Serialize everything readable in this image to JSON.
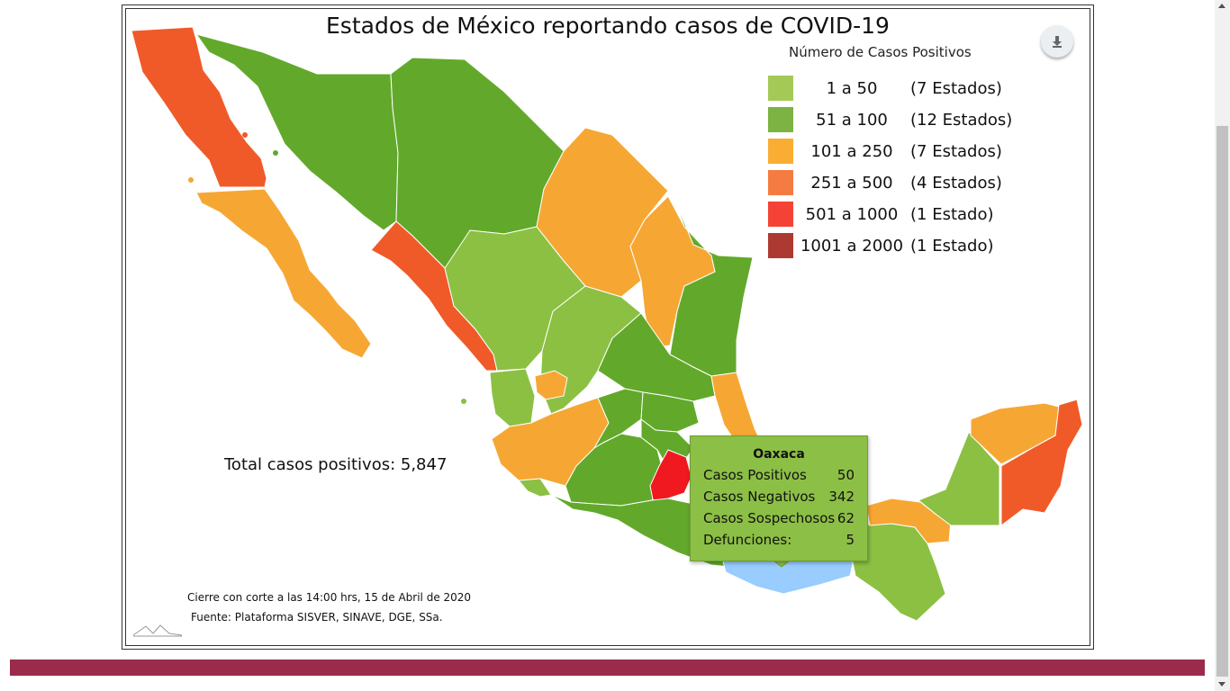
{
  "title": "Estados de México reportando casos de COVID-19",
  "legend": {
    "title": "Número de Casos Positivos",
    "items": [
      {
        "range": "1 a 50",
        "count": "(7 Estados)",
        "color": "#a5c957"
      },
      {
        "range": "51 a 100",
        "count": "(12 Estados)",
        "color": "#7cb342"
      },
      {
        "range": "101 a 250",
        "count": "(7 Estados)",
        "color": "#f9ae33"
      },
      {
        "range": "251 a 500",
        "count": "(4 Estados)",
        "color": "#f47c42"
      },
      {
        "range": "501 a 1000",
        "count": "(1 Estado)",
        "color": "#f44336"
      },
      {
        "range": "1001 a 2000",
        "count": "(1 Estado)",
        "color": "#ad3a32"
      }
    ]
  },
  "total": "Total casos positivos: 5,847",
  "footnotes": {
    "cutoff": "Cierre con corte a las 14:00 hrs, 15 de Abril de 2020",
    "source": "Fuente: Plataforma SISVER, SINAVE, DGE, SSa."
  },
  "tooltip": {
    "state": "Oaxaca",
    "rows": [
      {
        "label": "Casos Positivos",
        "value": "50"
      },
      {
        "label": "Casos Negativos",
        "value": "342"
      },
      {
        "label": "Casos Sospechosos",
        "value": "62"
      },
      {
        "label": "Defunciones:",
        "value": "5"
      }
    ]
  },
  "map_colors": {
    "green_light": "#8cc043",
    "green_dark": "#62a92b",
    "orange": "#f6a733",
    "red_orange": "#f05a28",
    "red": "#f0191f",
    "highlight": "#99ccff"
  },
  "icons": {
    "download": "download-icon",
    "logo": "mountain-logo"
  }
}
